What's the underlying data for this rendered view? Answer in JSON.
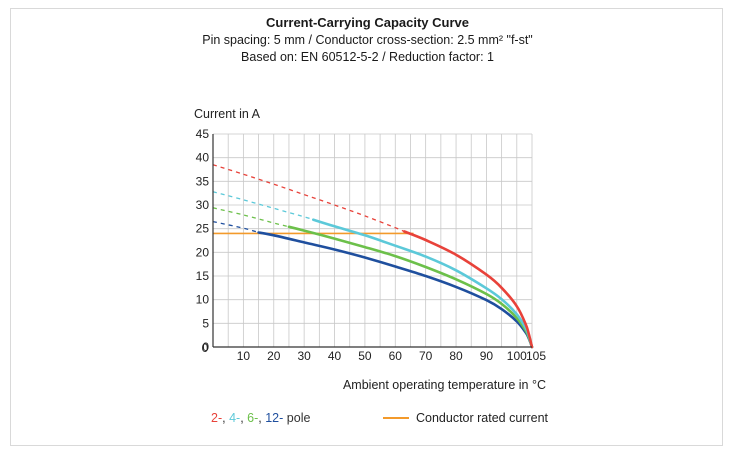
{
  "chart_data": {
    "type": "line",
    "title": "Current-Carrying Capacity Curve",
    "subtitle_lines": [
      "Pin spacing: 5 mm / Conductor cross-section: 2.5 mm² \"f-st\"",
      "Based on: EN 60512-5-2 / Reduction factor: 1"
    ],
    "ylabel": "Current in A",
    "xlabel": "Ambient operating temperature in °C",
    "xlim": [
      0,
      105
    ],
    "ylim": [
      0,
      45
    ],
    "x_ticks": [
      10,
      20,
      30,
      40,
      50,
      60,
      70,
      80,
      90,
      100,
      105
    ],
    "x_origin_label": "0",
    "y_ticks": [
      0,
      5,
      10,
      15,
      20,
      25,
      30,
      35,
      40,
      45
    ],
    "grid": true,
    "rated_current": {
      "name": "Conductor rated current",
      "value": 24,
      "x_end": 66,
      "color": "#f39a2b"
    },
    "series": [
      {
        "name": "2",
        "color": "#e8423a",
        "dashed_to_x": 63,
        "x": [
          0,
          10,
          20,
          30,
          40,
          50,
          60,
          63,
          70,
          80,
          90,
          95,
          100,
          103,
          104,
          105
        ],
        "y": [
          38.5,
          36.5,
          34.4,
          32.2,
          30.0,
          27.7,
          25.2,
          24.4,
          22.6,
          19.5,
          15.3,
          12.5,
          8.6,
          4.7,
          2.6,
          0
        ]
      },
      {
        "name": "4",
        "color": "#5cc9d9",
        "dashed_to_x": 33,
        "x": [
          0,
          10,
          20,
          30,
          33,
          40,
          50,
          60,
          70,
          80,
          90,
          95,
          100,
          103,
          104,
          105
        ],
        "y": [
          32.8,
          31.1,
          29.3,
          27.5,
          26.9,
          25.5,
          23.6,
          21.4,
          19.1,
          16.2,
          12.4,
          10.1,
          6.9,
          3.9,
          2.2,
          0
        ]
      },
      {
        "name": "6",
        "color": "#6cc04a",
        "dashed_to_x": 25,
        "x": [
          0,
          10,
          20,
          25,
          30,
          40,
          50,
          60,
          70,
          80,
          90,
          95,
          100,
          103,
          104,
          105
        ],
        "y": [
          29.4,
          27.9,
          26.2,
          25.4,
          24.6,
          22.9,
          21.1,
          19.2,
          16.9,
          14.3,
          11.2,
          9.1,
          6.1,
          3.4,
          1.9,
          0
        ]
      },
      {
        "name": "12",
        "color": "#1f4f9e",
        "dashed_to_x": 15,
        "x": [
          0,
          10,
          15,
          20,
          30,
          40,
          50,
          60,
          70,
          80,
          90,
          95,
          100,
          103,
          104,
          105
        ],
        "y": [
          26.5,
          25.1,
          24.2,
          23.6,
          22.1,
          20.6,
          18.9,
          17.0,
          15.0,
          12.7,
          9.9,
          8.0,
          5.4,
          3.0,
          1.7,
          0
        ]
      }
    ],
    "legend": {
      "pole_labels": [
        "2-",
        ", ",
        "4-",
        ", ",
        "6-",
        ", ",
        "12-",
        " pole"
      ],
      "rated_label": "Conductor rated current"
    }
  }
}
